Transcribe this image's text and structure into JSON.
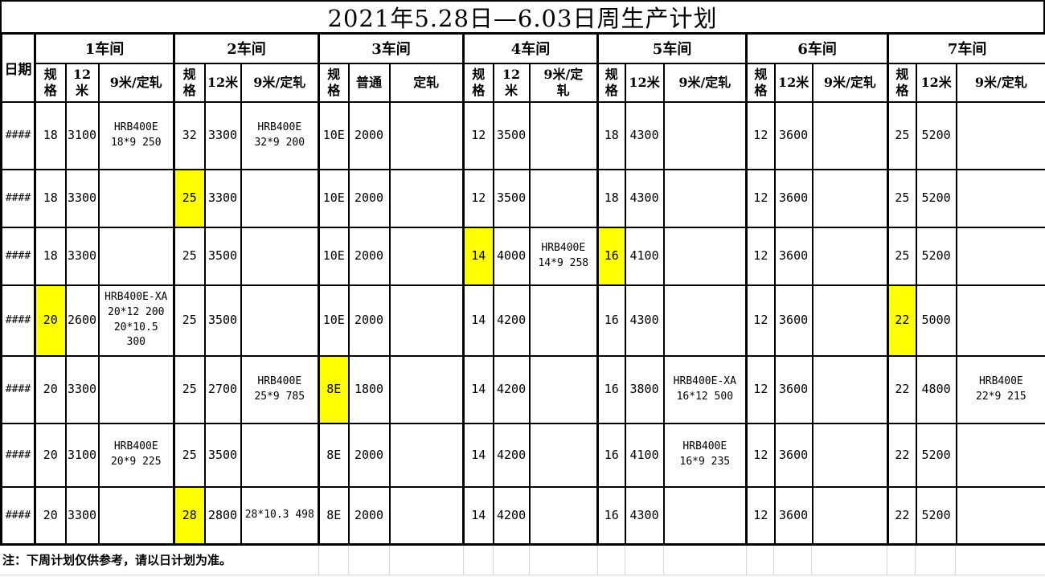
{
  "title": "2021年5.28日—6.03日周生产计划",
  "date_header": "日期",
  "note": "注：下周计划仅供参考，请以日计划为准。",
  "highlight_color": "#FFFF00",
  "workshops": [
    {
      "name": "1车间",
      "columns": [
        "规\n格",
        "12\n米",
        "9米/定轧"
      ]
    },
    {
      "name": "2车间",
      "columns": [
        "规\n格",
        "12米",
        "9米/定轧"
      ]
    },
    {
      "name": "3车间",
      "columns": [
        "规\n格",
        "普通",
        "定轧"
      ]
    },
    {
      "name": "4车间",
      "columns": [
        "规\n格",
        "12\n米",
        "9米/定\n轧"
      ]
    },
    {
      "name": "5车间",
      "columns": [
        "规\n格",
        "12米",
        "9米/定轧"
      ]
    },
    {
      "name": "6车间",
      "columns": [
        "规\n格",
        "12米",
        "9米/定轧"
      ]
    },
    {
      "name": "7车间",
      "columns": [
        "规\n格",
        "12米",
        "9米/定轧"
      ]
    }
  ],
  "rows": [
    {
      "date": "####",
      "cells": [
        "18",
        "3100",
        "HRB400E\n18*9 250",
        "32",
        "3300",
        "HRB400E\n32*9 200",
        "10E",
        "2000",
        "",
        "12",
        "3500",
        "",
        "18",
        "4300",
        "",
        "12",
        "3600",
        "",
        "25",
        "5200",
        ""
      ]
    },
    {
      "date": "####",
      "cells": [
        "18",
        "3300",
        "",
        {
          "v": "25",
          "hl": true
        },
        "3300",
        "",
        "10E",
        "2000",
        "",
        "12",
        "3500",
        "",
        "18",
        "4300",
        "",
        "12",
        "3600",
        "",
        "25",
        "5200",
        ""
      ]
    },
    {
      "date": "####",
      "cells": [
        "18",
        "3300",
        "",
        "25",
        "3500",
        "",
        "10E",
        "2000",
        "",
        {
          "v": "14",
          "hl": true
        },
        "4000",
        "HRB400E\n14*9 258",
        {
          "v": "16",
          "hl": true
        },
        "4100",
        "",
        "12",
        "3600",
        "",
        "25",
        "5200",
        ""
      ]
    },
    {
      "date": "####",
      "cells": [
        {
          "v": "20",
          "hl": true
        },
        "2600",
        "HRB400E-XA\n20*12 200\n20*10.5\n300",
        "25",
        "3500",
        "",
        "10E",
        "2000",
        "",
        "14",
        "4200",
        "",
        "16",
        "4300",
        "",
        "12",
        "3600",
        "",
        {
          "v": "22",
          "hl": true
        },
        "5000",
        ""
      ]
    },
    {
      "date": "####",
      "cells": [
        "20",
        "3300",
        "",
        "25",
        "2700",
        "HRB400E\n25*9 785",
        {
          "v": "8E",
          "hl": true
        },
        "1800",
        "",
        "14",
        "4200",
        "",
        "16",
        "3800",
        "HRB400E-XA\n16*12 500",
        "12",
        "3600",
        "",
        "22",
        "4800",
        "HRB400E\n22*9 215"
      ]
    },
    {
      "date": "####",
      "cells": [
        "20",
        "3100",
        "HRB400E\n20*9 225",
        "25",
        "3500",
        "",
        "8E",
        "2000",
        "",
        "14",
        "4200",
        "",
        "16",
        "4100",
        "HRB400E\n16*9 235",
        "12",
        "3600",
        "",
        "22",
        "5200",
        ""
      ]
    },
    {
      "date": "####",
      "cells": [
        "20",
        "3300",
        "",
        {
          "v": "28",
          "hl": true
        },
        "2800",
        "28*10.3 498",
        "8E",
        "2000",
        "",
        "14",
        "4200",
        "",
        "16",
        "4300",
        "",
        "12",
        "3600",
        "",
        "22",
        "5200",
        ""
      ]
    }
  ]
}
